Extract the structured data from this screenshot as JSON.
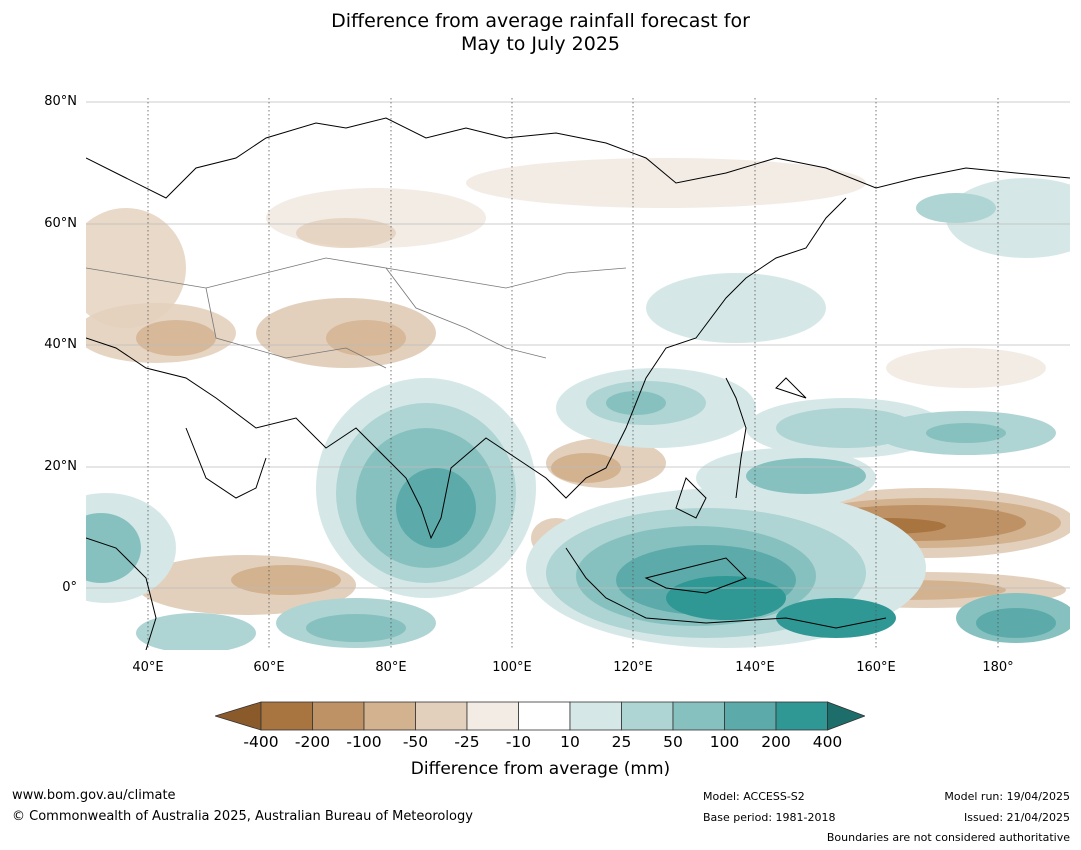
{
  "title": {
    "line1": "Difference from average rainfall forecast for",
    "line2": "May to July 2025"
  },
  "map": {
    "lat_labels": [
      "80°N",
      "60°N",
      "40°N",
      "20°N",
      "0°"
    ],
    "lon_labels": [
      "40°E",
      "60°E",
      "80°E",
      "100°E",
      "120°E",
      "140°E",
      "160°E",
      "180°"
    ]
  },
  "legend": {
    "ticks": [
      "-400",
      "-200",
      "-100",
      "-50",
      "-25",
      "-10",
      "10",
      "25",
      "50",
      "100",
      "200",
      "400"
    ],
    "colors": [
      "#8B5A2B",
      "#A87540",
      "#BF9265",
      "#D3B290",
      "#E3D0BC",
      "#F2ECE5",
      "#FFFFFF",
      "#D5E8E7",
      "#AED4D3",
      "#86C1C0",
      "#5CABAA",
      "#2F9894",
      "#1D6E6A"
    ],
    "title": "Difference from average (mm)"
  },
  "footer": {
    "website": "www.bom.gov.au/climate",
    "copyright": "© Commonwealth of Australia 2025, Australian Bureau of Meteorology",
    "model": "Model: ACCESS-S2",
    "base_period": "Base period: 1981-2018",
    "model_run": "Model run: 19/04/2025",
    "issued": "Issued: 21/04/2025",
    "disclaimer": "Boundaries are not considered authoritative"
  }
}
